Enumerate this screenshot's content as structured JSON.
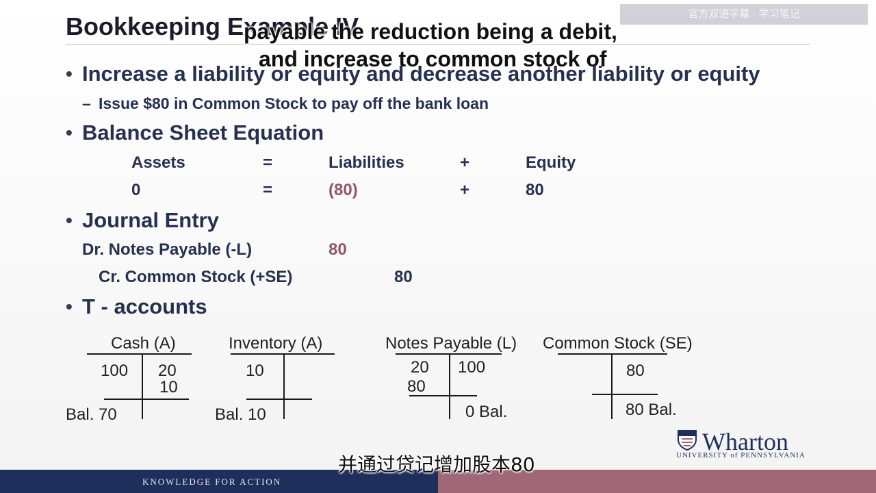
{
  "slide": {
    "title": "Bookkeeping Example IV",
    "watermark": "官方双语字幕 · 学习笔记",
    "subtitle_overlay": {
      "line1": "payable the reduction being a debit,",
      "line2": "and increase to common stock of"
    },
    "bullets": {
      "b1": "Increase a liability or equity and decrease another liability or equity",
      "b1_sub": "Issue $80 in Common Stock to pay off the bank loan",
      "b2": "Balance Sheet Equation",
      "b3": "Journal Entry",
      "b4": "T - accounts"
    },
    "equation": {
      "headers": [
        "Assets",
        "=",
        "Liabilities",
        "+",
        "Equity"
      ],
      "values": [
        "0",
        "=",
        "(80)",
        "+",
        "80"
      ]
    },
    "journal": {
      "debit_label": "Dr. Notes Payable (-L)",
      "debit_amount": "80",
      "credit_label": "Cr. Common Stock (+SE)",
      "credit_amount": "80"
    },
    "t_accounts": {
      "cash": {
        "title": "Cash (A)",
        "debit": "100",
        "credit1": "20",
        "credit2": "10",
        "bal": "Bal. 70"
      },
      "inventory": {
        "title": "Inventory (A)",
        "debit": "10",
        "bal": "Bal. 10"
      },
      "notes_payable": {
        "title": "Notes Payable (L)",
        "debit1": "20",
        "debit2": "80",
        "credit": "100",
        "bal": "0  Bal."
      },
      "common_stock": {
        "title": "Common Stock (SE)",
        "credit": "80",
        "bal": "80 Bal."
      }
    },
    "logo": {
      "name": "Wharton",
      "sub": "UNIVERSITY of PENNSYLVANIA"
    },
    "footer": "KNOWLEDGE FOR ACTION",
    "cn_subtitle": "并通过贷记增加股本80"
  }
}
